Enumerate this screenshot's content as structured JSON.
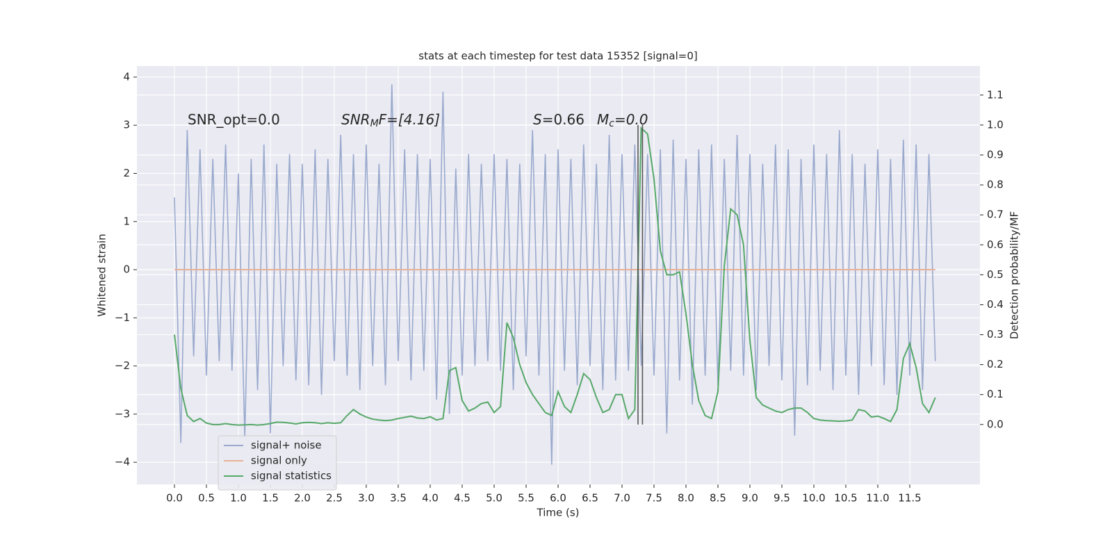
{
  "chart_data": {
    "type": "line",
    "title": "stats at each timestep for test data 15352 [signal=0]",
    "xlabel": "Time (s)",
    "ylabel": "Whitened strain",
    "y2label": "Detection probability/MF",
    "annotations": [
      {
        "text": "SNR_opt=0.0"
      },
      {
        "base": "SNR",
        "sub": "M",
        "rest": "F=[4.16]"
      },
      {
        "base": "S",
        "rest": "=0.66"
      },
      {
        "base": "M",
        "sub": "c",
        "rest": "=0.0"
      }
    ],
    "xlim": [
      -0.587,
      12.598
    ],
    "ylim": [
      -4.46,
      4.23
    ],
    "y2lim": [
      -0.2,
      1.197
    ],
    "xticks": [
      {
        "value": 0,
        "label": "0.0"
      },
      0.5,
      {
        "value": 1,
        "label": "1.0"
      },
      1.5,
      {
        "value": 2,
        "label": "2.0"
      },
      2.5,
      {
        "value": 3,
        "label": "3.0"
      },
      3.5,
      {
        "value": 4,
        "label": "4.0"
      },
      4.5,
      {
        "value": 5,
        "label": "5.0"
      },
      5.5,
      {
        "value": 6,
        "label": "6.0"
      },
      6.5,
      {
        "value": 7,
        "label": "7.0"
      },
      7.5,
      {
        "value": 8,
        "label": "8.0"
      },
      8.5,
      {
        "value": 9,
        "label": "9.0"
      },
      9.5,
      {
        "value": 10,
        "label": "10.0"
      },
      10.5,
      {
        "value": 11,
        "label": "11.0"
      },
      11.5
    ],
    "yticks": [
      {
        "value": -4,
        "label": "−4"
      },
      {
        "value": -3,
        "label": "−3"
      },
      {
        "value": -2,
        "label": "−2"
      },
      {
        "value": -1,
        "label": "−1"
      },
      0,
      1,
      2,
      3,
      4
    ],
    "y2ticks": [
      {
        "value": 0,
        "label": "0.0"
      },
      0.1,
      0.2,
      0.3,
      0.4,
      0.5,
      0.6,
      0.7,
      0.8,
      0.9,
      {
        "value": 1,
        "label": "1.0"
      },
      1.1
    ],
    "grid": true,
    "legend": "lower left",
    "x": [
      0.0,
      0.1,
      0.2,
      0.3,
      0.4,
      0.5,
      0.6,
      0.7,
      0.8,
      0.9,
      1.0,
      1.1,
      1.2,
      1.3,
      1.4,
      1.5,
      1.6,
      1.7,
      1.8,
      1.9,
      2.0,
      2.1,
      2.2,
      2.3,
      2.4,
      2.5,
      2.6,
      2.7,
      2.8,
      2.9,
      3.0,
      3.1,
      3.2,
      3.3,
      3.4,
      3.5,
      3.6,
      3.7,
      3.8,
      3.9,
      4.0,
      4.1,
      4.2,
      4.3,
      4.4,
      4.5,
      4.6,
      4.7,
      4.8,
      4.9,
      5.0,
      5.1,
      5.2,
      5.3,
      5.4,
      5.5,
      5.6,
      5.7,
      5.8,
      5.9,
      6.0,
      6.1,
      6.2,
      6.3,
      6.4,
      6.5,
      6.6,
      6.7,
      6.8,
      6.9,
      7.0,
      7.1,
      7.2,
      7.3,
      7.4,
      7.5,
      7.6,
      7.7,
      7.8,
      7.9,
      8.0,
      8.1,
      8.2,
      8.3,
      8.4,
      8.5,
      8.6,
      8.7,
      8.8,
      8.9,
      9.0,
      9.1,
      9.2,
      9.3,
      9.4,
      9.5,
      9.6,
      9.7,
      9.8,
      9.9,
      10.0,
      10.1,
      10.2,
      10.3,
      10.4,
      10.5,
      10.6,
      10.7,
      10.8,
      10.9,
      11.0,
      11.1,
      11.2,
      11.3,
      11.4,
      11.5,
      11.6,
      11.7,
      11.8,
      11.9
    ],
    "series": [
      {
        "name": "signal+ noise",
        "color": "#99a9cd",
        "values": [
          1.5,
          -3.6,
          2.9,
          -1.8,
          2.5,
          -2.2,
          2.3,
          -1.9,
          2.6,
          -2.1,
          2.0,
          -3.5,
          2.3,
          -2.5,
          2.6,
          -3.4,
          2.2,
          -2.0,
          2.4,
          -2.3,
          2.2,
          -2.4,
          2.5,
          -2.6,
          2.3,
          -1.9,
          2.8,
          -2.2,
          2.4,
          -2.5,
          2.6,
          -2.0,
          2.2,
          -2.4,
          3.85,
          -1.9,
          2.5,
          -2.3,
          2.4,
          -2.1,
          2.3,
          -2.7,
          3.7,
          -3.0,
          2.1,
          -2.2,
          2.4,
          -2.0,
          2.2,
          -1.9,
          2.4,
          -2.1,
          2.3,
          -2.5,
          2.2,
          -1.8,
          2.9,
          -2.2,
          2.4,
          -4.05,
          2.5,
          -2.1,
          2.3,
          -2.4,
          2.6,
          -2.0,
          2.2,
          -2.5,
          2.8,
          -2.3,
          2.4,
          -2.1,
          2.6,
          -2.0,
          2.4,
          -2.2,
          2.5,
          -3.4,
          2.7,
          -2.3,
          2.3,
          -2.8,
          2.5,
          -2.2,
          2.6,
          -2.4,
          2.3,
          -2.1,
          2.8,
          -2.2,
          2.4,
          -2.5,
          2.2,
          -2.0,
          2.6,
          -2.3,
          2.5,
          -3.45,
          2.3,
          -2.4,
          2.6,
          -2.1,
          2.4,
          -2.5,
          2.9,
          -2.2,
          2.4,
          -2.6,
          2.2,
          -2.0,
          2.5,
          -2.4,
          2.3,
          -2.6,
          2.7,
          -2.2,
          2.6,
          -2.5,
          2.4,
          -1.9
        ]
      },
      {
        "name": "signal only",
        "color": "#e8b196",
        "values": [
          0,
          0,
          0,
          0,
          0,
          0,
          0,
          0,
          0,
          0,
          0,
          0,
          0,
          0,
          0,
          0,
          0,
          0,
          0,
          0,
          0,
          0,
          0,
          0,
          0,
          0,
          0,
          0,
          0,
          0,
          0,
          0,
          0,
          0,
          0,
          0,
          0,
          0,
          0,
          0,
          0,
          0,
          0,
          0,
          0,
          0,
          0,
          0,
          0,
          0,
          0,
          0,
          0,
          0,
          0,
          0,
          0,
          0,
          0,
          0,
          0,
          0,
          0,
          0,
          0,
          0,
          0,
          0,
          0,
          0,
          0,
          0,
          0,
          0,
          0,
          0,
          0,
          0,
          0,
          0,
          0,
          0,
          0,
          0,
          0,
          0,
          0,
          0,
          0,
          0,
          0,
          0,
          0,
          0,
          0,
          0,
          0,
          0,
          0,
          0,
          0,
          0,
          0,
          0,
          0,
          0,
          0,
          0,
          0,
          0,
          0,
          0,
          0,
          0,
          0,
          0,
          0,
          0,
          0,
          0
        ]
      },
      {
        "name": "signal statistics",
        "color": "#55a868",
        "axis": "y2",
        "values": [
          0.3,
          0.12,
          0.03,
          0.01,
          0.02,
          0.005,
          0.0,
          0.0,
          0.003,
          0.0,
          -0.002,
          -0.001,
          0.0,
          -0.002,
          0.0,
          0.003,
          0.008,
          0.007,
          0.005,
          0.002,
          0.006,
          0.007,
          0.006,
          0.003,
          0.006,
          0.004,
          0.006,
          0.03,
          0.05,
          0.035,
          0.025,
          0.018,
          0.015,
          0.013,
          0.015,
          0.02,
          0.024,
          0.028,
          0.022,
          0.02,
          0.026,
          0.015,
          0.02,
          0.18,
          0.19,
          0.08,
          0.045,
          0.055,
          0.07,
          0.075,
          0.04,
          0.06,
          0.34,
          0.29,
          0.2,
          0.14,
          0.1,
          0.07,
          0.04,
          0.03,
          0.11,
          0.06,
          0.04,
          0.1,
          0.17,
          0.15,
          0.09,
          0.04,
          0.05,
          0.1,
          0.1,
          0.02,
          0.05,
          0.99,
          0.97,
          0.82,
          0.58,
          0.5,
          0.5,
          0.51,
          0.37,
          0.2,
          0.08,
          0.03,
          0.02,
          0.11,
          0.53,
          0.72,
          0.7,
          0.6,
          0.28,
          0.09,
          0.065,
          0.055,
          0.045,
          0.04,
          0.05,
          0.055,
          0.055,
          0.04,
          0.02,
          0.015,
          0.013,
          0.012,
          0.011,
          0.012,
          0.015,
          0.05,
          0.045,
          0.025,
          0.028,
          0.02,
          0.01,
          0.05,
          0.22,
          0.27,
          0.19,
          0.07,
          0.04,
          0.09
        ]
      }
    ],
    "vlines": {
      "x": [
        7.25,
        7.32
      ],
      "ymin": 0,
      "ymax": 1,
      "axis": "y2",
      "color": "#555555"
    }
  }
}
